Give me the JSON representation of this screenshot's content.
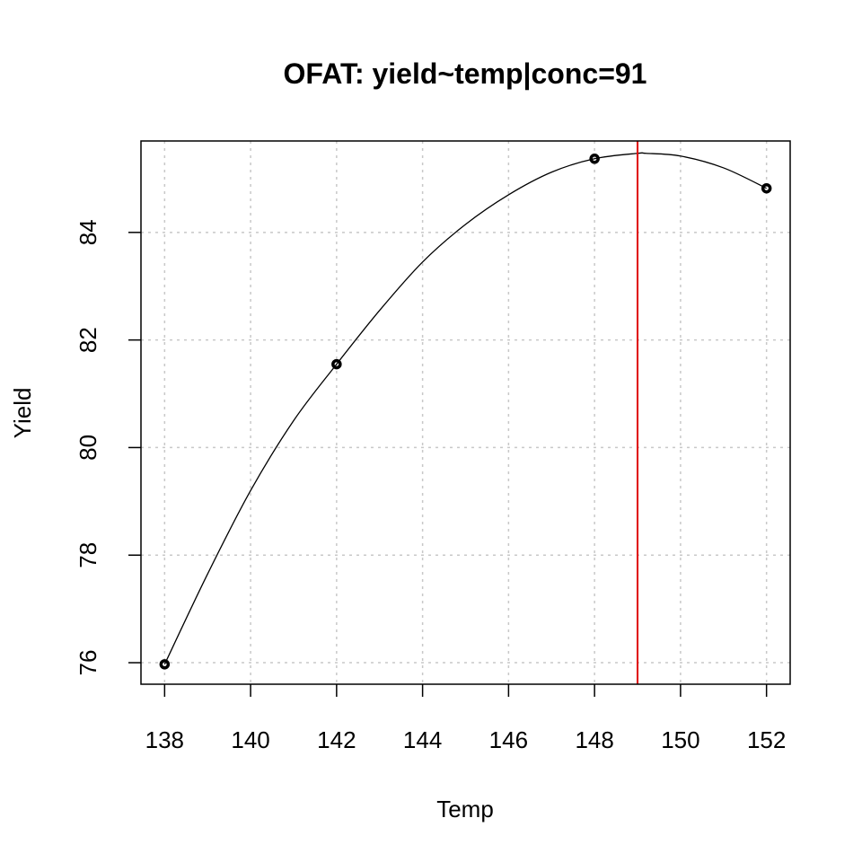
{
  "chart_data": {
    "type": "line",
    "title": "OFAT: yield~temp|conc=91",
    "xlabel": "Temp",
    "ylabel": "Yield",
    "xlim": [
      137.45,
      152.55
    ],
    "ylim": [
      75.6,
      85.7
    ],
    "x_ticks": [
      138,
      140,
      142,
      144,
      146,
      148,
      150,
      152
    ],
    "y_ticks": [
      76,
      78,
      80,
      82,
      84
    ],
    "grid": true,
    "points": [
      {
        "x": 138,
        "y": 75.97
      },
      {
        "x": 142,
        "y": 81.55
      },
      {
        "x": 148,
        "y": 85.37
      },
      {
        "x": 152,
        "y": 84.82
      }
    ],
    "fitted_curve": {
      "x": [
        138,
        139,
        140,
        141,
        142,
        143,
        144,
        145,
        146,
        147,
        148,
        149,
        149.2,
        150,
        151,
        152
      ],
      "y": [
        75.97,
        77.65,
        79.2,
        80.5,
        81.55,
        82.55,
        83.45,
        84.15,
        84.7,
        85.12,
        85.37,
        85.47,
        85.47,
        85.42,
        85.2,
        84.82
      ]
    },
    "vline": {
      "x": 149.0,
      "color": "#e00000"
    }
  }
}
